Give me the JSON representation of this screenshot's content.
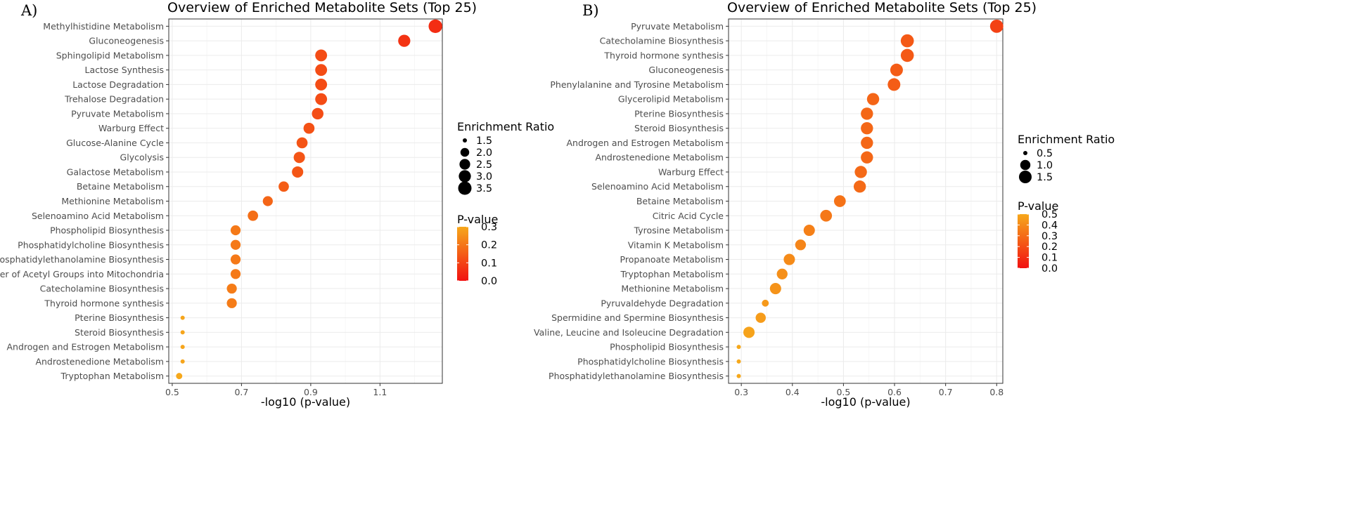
{
  "chart_data": [
    {
      "panel_label": "A)",
      "type": "scatter",
      "title": "Overview of Enriched Metabolite Sets (Top 25)",
      "xlabel": "-log10 (p-value)",
      "xlim": [
        0.49,
        1.28
      ],
      "xticks": [
        0.5,
        0.7,
        0.9,
        1.1
      ],
      "xtick_labels": [
        "0.5",
        "0.7",
        "0.9",
        "1.1"
      ],
      "categories": [
        "Methylhistidine Metabolism",
        "Gluconeogenesis",
        "Sphingolipid Metabolism",
        "Lactose Synthesis",
        "Lactose Degradation",
        "Trehalose Degradation",
        "Pyruvate Metabolism",
        "Warburg Effect",
        "Glucose-Alanine Cycle",
        "Glycolysis",
        "Galactose Metabolism",
        "Betaine Metabolism",
        "Methionine Metabolism",
        "Selenoamino Acid Metabolism",
        "Phospholipid Biosynthesis",
        "Phosphatidylcholine Biosynthesis",
        "Phosphatidylethanolamine Biosynthesis",
        "Transfer of Acetyl Groups into Mitochondria",
        "Catecholamine Biosynthesis",
        "Thyroid hormone synthesis",
        "Pterine Biosynthesis",
        "Steroid Biosynthesis",
        "Androgen and Estrogen Metabolism",
        "Androstenedione Metabolism",
        "Tryptophan Metabolism"
      ],
      "x": [
        1.26,
        1.17,
        0.93,
        0.93,
        0.93,
        0.93,
        0.92,
        0.895,
        0.875,
        0.867,
        0.862,
        0.822,
        0.776,
        0.733,
        0.683,
        0.683,
        0.683,
        0.683,
        0.672,
        0.672,
        0.53,
        0.53,
        0.53,
        0.53,
        0.52
      ],
      "p_value": [
        0.055,
        0.068,
        0.118,
        0.118,
        0.118,
        0.118,
        0.12,
        0.127,
        0.133,
        0.136,
        0.137,
        0.151,
        0.167,
        0.185,
        0.207,
        0.207,
        0.207,
        0.207,
        0.213,
        0.213,
        0.295,
        0.295,
        0.295,
        0.295,
        0.302
      ],
      "enrichment_ratio": [
        3.6,
        3.0,
        2.9,
        2.9,
        2.9,
        2.9,
        2.8,
        2.6,
        2.6,
        2.7,
        2.7,
        2.4,
        2.3,
        2.4,
        2.3,
        2.3,
        2.3,
        2.3,
        2.3,
        2.3,
        1.3,
        1.3,
        1.3,
        1.3,
        1.6
      ],
      "size_legend": {
        "title": "Enrichment Ratio",
        "values": [
          1.5,
          2.0,
          2.5,
          3.0,
          3.5
        ],
        "labels": [
          "1.5",
          "2.0",
          "2.5",
          "3.0",
          "3.5"
        ]
      },
      "color_legend": {
        "title": "P-value",
        "range": [
          0.0,
          0.3
        ],
        "ticks": [
          0.0,
          0.1,
          0.2,
          0.3
        ],
        "labels": [
          "0.0",
          "0.1",
          "0.2",
          "0.3"
        ]
      }
    },
    {
      "panel_label": "B)",
      "type": "scatter",
      "title": "Overview of Enriched Metabolite Sets (Top 25)",
      "xlabel": "-log10 (p-value)",
      "xlim": [
        0.275,
        0.812
      ],
      "xticks": [
        0.3,
        0.4,
        0.5,
        0.6,
        0.7,
        0.8
      ],
      "xtick_labels": [
        "0.3",
        "0.4",
        "0.5",
        "0.6",
        "0.7",
        "0.8"
      ],
      "categories": [
        "Pyruvate Metabolism",
        "Catecholamine Biosynthesis",
        "Thyroid hormone synthesis",
        "Gluconeogenesis",
        "Phenylalanine and Tyrosine Metabolism",
        "Glycerolipid Metabolism",
        "Pterine Biosynthesis",
        "Steroid Biosynthesis",
        "Androgen and Estrogen Metabolism",
        "Androstenedione Metabolism",
        "Warburg Effect",
        "Selenoamino Acid Metabolism",
        "Betaine Metabolism",
        "Citric Acid Cycle",
        "Tyrosine Metabolism",
        "Vitamin K Metabolism",
        "Propanoate Metabolism",
        "Tryptophan Metabolism",
        "Methionine Metabolism",
        "Pyruvaldehyde Degradation",
        "Spermidine and Spermine Biosynthesis",
        "Valine, Leucine and Isoleucine Degradation",
        "Phospholipid Biosynthesis",
        "Phosphatidylcholine Biosynthesis",
        "Phosphatidylethanolamine Biosynthesis"
      ],
      "x": [
        0.8,
        0.625,
        0.625,
        0.604,
        0.599,
        0.558,
        0.546,
        0.546,
        0.546,
        0.546,
        0.534,
        0.532,
        0.493,
        0.466,
        0.433,
        0.416,
        0.394,
        0.38,
        0.367,
        0.347,
        0.338,
        0.315,
        0.295,
        0.295,
        0.295
      ],
      "p_value": [
        0.16,
        0.237,
        0.237,
        0.249,
        0.252,
        0.277,
        0.284,
        0.284,
        0.284,
        0.284,
        0.292,
        0.294,
        0.321,
        0.342,
        0.369,
        0.384,
        0.404,
        0.417,
        0.43,
        0.45,
        0.459,
        0.484,
        0.507,
        0.507,
        0.507
      ],
      "enrichment_ratio": [
        1.7,
        1.6,
        1.6,
        1.5,
        1.5,
        1.4,
        1.4,
        1.4,
        1.4,
        1.4,
        1.4,
        1.4,
        1.3,
        1.3,
        1.2,
        1.1,
        1.2,
        1.1,
        1.2,
        0.6,
        1.0,
        1.2,
        0.4,
        0.4,
        0.4
      ],
      "size_legend": {
        "title": "Enrichment Ratio",
        "values": [
          0.5,
          1.0,
          1.5
        ],
        "labels": [
          "0.5",
          "1.0",
          "1.5"
        ]
      },
      "color_legend": {
        "title": "P-value",
        "range": [
          0.0,
          0.5
        ],
        "ticks": [
          0.0,
          0.1,
          0.2,
          0.3,
          0.4,
          0.5
        ],
        "labels": [
          "0.0",
          "0.1",
          "0.2",
          "0.3",
          "0.4",
          "0.5"
        ]
      }
    }
  ]
}
